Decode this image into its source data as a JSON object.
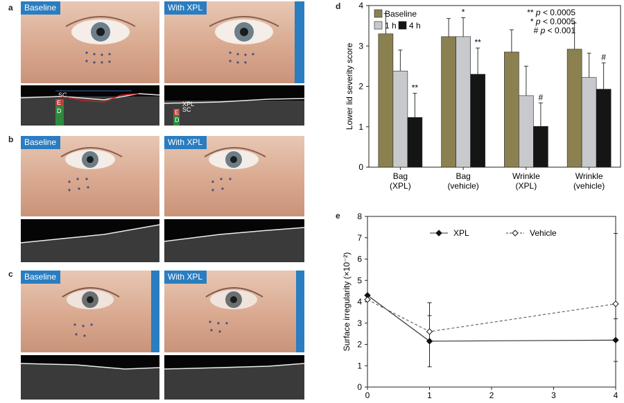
{
  "panels": {
    "a": {
      "letter": "a",
      "left_tag": "Baseline",
      "right_tag": "With XPL",
      "oct_left_labels": [
        "SC",
        "E",
        "D"
      ],
      "oct_right_labels": [
        "XPL",
        "SC",
        "E",
        "D"
      ]
    },
    "b": {
      "letter": "b",
      "left_tag": "Baseline",
      "right_tag": "With XPL"
    },
    "c": {
      "letter": "c",
      "left_tag": "Baseline",
      "right_tag": "With XPL"
    },
    "d": {
      "letter": "d"
    },
    "e": {
      "letter": "e"
    }
  },
  "chart_data": [
    {
      "type": "bar",
      "panel": "d",
      "ylabel": "Lower lid severity score",
      "ylim": [
        0,
        4
      ],
      "yticks": [
        0,
        1,
        2,
        3,
        4
      ],
      "categories": [
        [
          "Bag",
          "(XPL)"
        ],
        [
          "Bag",
          "(vehicle)"
        ],
        [
          "Wrinkle",
          "(XPL)"
        ],
        [
          "Wrinkle",
          "(vehicle)"
        ]
      ],
      "series": [
        {
          "name": "Baseline",
          "color": "#8b8150",
          "values": [
            3.3,
            3.23,
            2.85,
            2.92
          ],
          "err": [
            0.5,
            0.45,
            0.55,
            0.65
          ]
        },
        {
          "name": "1 h",
          "color": "#c7c9cc",
          "values": [
            2.38,
            3.23,
            1.77,
            2.22
          ],
          "err": [
            0.52,
            0.47,
            0.73,
            0.6
          ]
        },
        {
          "name": "4 h",
          "color": "#151515",
          "values": [
            1.23,
            2.3,
            1.01,
            1.93
          ],
          "err": [
            0.6,
            0.65,
            0.58,
            0.65
          ]
        }
      ],
      "annotations": [
        {
          "cat": 0,
          "series": 2,
          "text": "**"
        },
        {
          "cat": 1,
          "series": 1,
          "text": "*"
        },
        {
          "cat": 1,
          "series": 2,
          "text": "**"
        },
        {
          "cat": 2,
          "series": 2,
          "text": "#"
        },
        {
          "cat": 3,
          "series": 2,
          "text": "#"
        }
      ],
      "sig_legend": [
        {
          "sym": "**",
          "rest": "< 0.0005"
        },
        {
          "sym": "*",
          "rest": "< 0.0005"
        },
        {
          "sym": "#",
          "rest": "< 0.001"
        }
      ],
      "p_symbol": "p"
    },
    {
      "type": "line",
      "panel": "e",
      "ylabel": "Surface irregularity (×10⁻²)",
      "xlim": [
        0,
        4
      ],
      "ylim": [
        0,
        8
      ],
      "xticks": [
        0,
        1,
        2,
        3,
        4
      ],
      "yticks": [
        0,
        1,
        2,
        3,
        4,
        5,
        6,
        7,
        8
      ],
      "series": [
        {
          "name": "XPL",
          "style": "solid",
          "marker": "filled-diamond",
          "x": [
            0,
            1,
            4
          ],
          "y": [
            4.3,
            2.15,
            2.2
          ],
          "err": [
            0,
            1.2,
            1.0
          ]
        },
        {
          "name": "Vehicle",
          "style": "dashed",
          "marker": "open-diamond",
          "x": [
            0,
            1,
            4
          ],
          "y": [
            4.1,
            2.6,
            3.9
          ],
          "err": [
            0,
            1.35,
            3.3
          ]
        }
      ]
    }
  ]
}
